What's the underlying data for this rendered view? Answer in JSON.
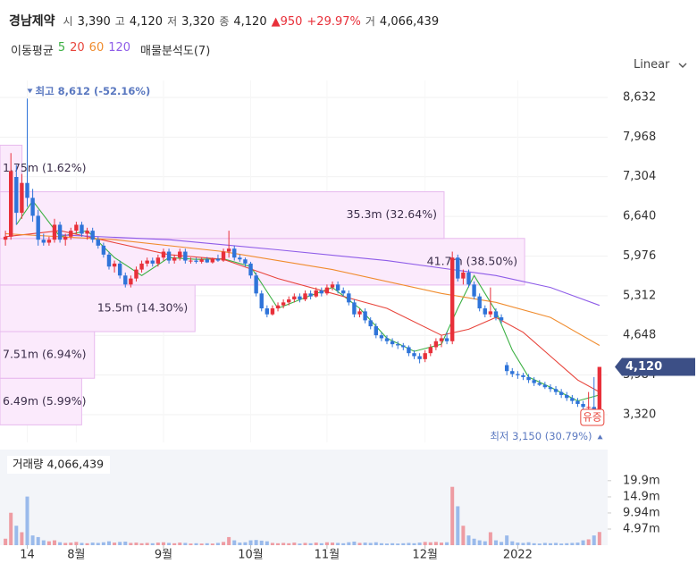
{
  "header": {
    "name": "경남제약",
    "fields": [
      {
        "label": "시",
        "value": "3,390"
      },
      {
        "label": "고",
        "value": "4,120"
      },
      {
        "label": "저",
        "value": "3,320"
      },
      {
        "label": "종",
        "value": "4,120"
      }
    ],
    "change": "▲950",
    "change_pct": "+29.97%",
    "volume_label": "거",
    "volume": "4,066,439"
  },
  "chart_data": [
    {
      "type": "candlestick",
      "legend_title": "이동평균",
      "scale": "Linear",
      "up_color": "#e8303a",
      "down_color": "#2f74d9",
      "xlim": [
        -1,
        110.5
      ],
      "ylim": [
        2856,
        8916
      ],
      "yticks": [
        {
          "value": 3320,
          "label": "3,320"
        },
        {
          "value": 3984,
          "label": "3,984"
        },
        {
          "value": 4648,
          "label": "4,648"
        },
        {
          "value": 5312,
          "label": "5,312"
        },
        {
          "value": 5976,
          "label": "5,976"
        },
        {
          "value": 6640,
          "label": "6,640"
        },
        {
          "value": 7304,
          "label": "7,304"
        },
        {
          "value": 7968,
          "label": "7,968"
        },
        {
          "value": 8632,
          "label": "8,632"
        }
      ],
      "xticks": [
        {
          "value": 4,
          "label": "14"
        },
        {
          "value": 13,
          "label": "8월"
        },
        {
          "value": 29,
          "label": "9월"
        },
        {
          "value": 45,
          "label": "10월"
        },
        {
          "value": 59,
          "label": "11월"
        },
        {
          "value": 77,
          "label": "12월"
        },
        {
          "value": 94,
          "label": "2022"
        }
      ],
      "last_price": {
        "value": 4120,
        "label": "4,120"
      },
      "candles": [
        [
          6250,
          6400,
          6150,
          6300
        ],
        [
          6300,
          7700,
          6250,
          7400
        ],
        [
          7300,
          7500,
          6500,
          6700
        ],
        [
          6700,
          7350,
          6600,
          7200
        ],
        [
          7200,
          8612,
          6800,
          6950
        ],
        [
          6950,
          7100,
          6550,
          6650
        ],
        [
          6650,
          6750,
          6150,
          6250
        ],
        [
          6250,
          6350,
          6150,
          6200
        ],
        [
          6200,
          6300,
          6150,
          6250
        ],
        [
          6250,
          6600,
          6200,
          6500
        ],
        [
          6500,
          6550,
          6200,
          6250
        ],
        [
          6250,
          6350,
          6150,
          6300
        ],
        [
          6300,
          6450,
          6250,
          6400
        ],
        [
          6400,
          6550,
          6350,
          6500
        ],
        [
          6500,
          6550,
          6300,
          6350
        ],
        [
          6350,
          6450,
          6250,
          6400
        ],
        [
          6400,
          6450,
          6200,
          6250
        ],
        [
          6250,
          6300,
          6100,
          6150
        ],
        [
          6150,
          6200,
          5950,
          6000
        ],
        [
          6000,
          6050,
          5750,
          5800
        ],
        [
          5800,
          5900,
          5700,
          5850
        ],
        [
          5850,
          5900,
          5600,
          5650
        ],
        [
          5650,
          5700,
          5450,
          5500
        ],
        [
          5500,
          5650,
          5450,
          5600
        ],
        [
          5600,
          5800,
          5550,
          5750
        ],
        [
          5750,
          5900,
          5700,
          5850
        ],
        [
          5850,
          5950,
          5800,
          5900
        ],
        [
          5900,
          5950,
          5800,
          5850
        ],
        [
          5850,
          6000,
          5800,
          5950
        ],
        [
          5950,
          6100,
          5900,
          6050
        ],
        [
          6050,
          6100,
          5850,
          5900
        ],
        [
          5900,
          6000,
          5850,
          5950
        ],
        [
          5950,
          6100,
          5900,
          6050
        ],
        [
          6050,
          6100,
          5850,
          5900
        ],
        [
          5900,
          5950,
          5850,
          5900
        ],
        [
          5900,
          5950,
          5850,
          5880
        ],
        [
          5880,
          5950,
          5850,
          5920
        ],
        [
          5920,
          5960,
          5860,
          5870
        ],
        [
          5870,
          5950,
          5850,
          5930
        ],
        [
          5930,
          6000,
          5880,
          5900
        ],
        [
          5900,
          6100,
          5880,
          6050
        ],
        [
          6050,
          6400,
          5950,
          6100
        ],
        [
          6100,
          6150,
          5900,
          5950
        ],
        [
          5950,
          6000,
          5880,
          5920
        ],
        [
          5920,
          5950,
          5800,
          5850
        ],
        [
          5850,
          5880,
          5600,
          5650
        ],
        [
          5650,
          5700,
          5300,
          5350
        ],
        [
          5350,
          5400,
          5050,
          5100
        ],
        [
          5100,
          5150,
          4950,
          5000
        ],
        [
          5000,
          5150,
          4980,
          5100
        ],
        [
          5100,
          5200,
          5050,
          5150
        ],
        [
          5150,
          5250,
          5100,
          5200
        ],
        [
          5200,
          5300,
          5150,
          5250
        ],
        [
          5250,
          5350,
          5200,
          5300
        ],
        [
          5300,
          5350,
          5200,
          5250
        ],
        [
          5250,
          5400,
          5220,
          5350
        ],
        [
          5350,
          5400,
          5250,
          5300
        ],
        [
          5300,
          5450,
          5280,
          5400
        ],
        [
          5400,
          5450,
          5300,
          5350
        ],
        [
          5350,
          5500,
          5320,
          5450
        ],
        [
          5450,
          5550,
          5400,
          5500
        ],
        [
          5500,
          5550,
          5350,
          5400
        ],
        [
          5400,
          5450,
          5300,
          5350
        ],
        [
          5350,
          5400,
          5150,
          5200
        ],
        [
          5200,
          5250,
          4950,
          5000
        ],
        [
          5000,
          5100,
          4950,
          5050
        ],
        [
          5050,
          5100,
          4850,
          4900
        ],
        [
          4900,
          4950,
          4750,
          4800
        ],
        [
          4800,
          4850,
          4600,
          4650
        ],
        [
          4650,
          4700,
          4550,
          4600
        ],
        [
          4600,
          4650,
          4500,
          4550
        ],
        [
          4550,
          4600,
          4450,
          4500
        ],
        [
          4500,
          4550,
          4420,
          4480
        ],
        [
          4480,
          4520,
          4400,
          4450
        ],
        [
          4450,
          4480,
          4300,
          4350
        ],
        [
          4350,
          4400,
          4250,
          4300
        ],
        [
          4300,
          4350,
          4180,
          4250
        ],
        [
          4250,
          4400,
          4200,
          4350
        ],
        [
          4350,
          4500,
          4300,
          4450
        ],
        [
          4450,
          4600,
          4400,
          4550
        ],
        [
          4550,
          4650,
          4450,
          4600
        ],
        [
          4600,
          4700,
          4500,
          4550
        ],
        [
          4550,
          6050,
          4500,
          5950
        ],
        [
          5950,
          6000,
          5550,
          5600
        ],
        [
          5600,
          5750,
          5500,
          5700
        ],
        [
          5700,
          5750,
          5450,
          5500
        ],
        [
          5500,
          5550,
          5250,
          5300
        ],
        [
          5300,
          5350,
          5050,
          5100
        ],
        [
          5100,
          5150,
          4950,
          5000
        ],
        [
          5000,
          5450,
          4950,
          5050
        ],
        [
          5050,
          5100,
          4900,
          4950
        ],
        [
          4950,
          5000,
          4850,
          4900
        ],
        [
          4150,
          4200,
          3980,
          4050
        ],
        [
          4050,
          4100,
          3950,
          4000
        ],
        [
          4000,
          4050,
          3920,
          3980
        ],
        [
          3980,
          4020,
          3900,
          3950
        ],
        [
          3950,
          4000,
          3850,
          3900
        ],
        [
          3900,
          3950,
          3800,
          3850
        ],
        [
          3850,
          3900,
          3800,
          3820
        ],
        [
          3820,
          3870,
          3750,
          3780
        ],
        [
          3780,
          3830,
          3700,
          3750
        ],
        [
          3750,
          3800,
          3650,
          3700
        ],
        [
          3700,
          3750,
          3600,
          3650
        ],
        [
          3650,
          3700,
          3550,
          3600
        ],
        [
          3600,
          3650,
          3500,
          3550
        ],
        [
          3550,
          3600,
          3450,
          3500
        ],
        [
          3500,
          3550,
          3150,
          3450
        ],
        [
          3450,
          3700,
          3400,
          3450
        ],
        [
          3450,
          3950,
          3350,
          3400
        ],
        [
          3390,
          4120,
          3320,
          4120
        ]
      ],
      "series": [
        {
          "name": "5",
          "color": "#3cb043",
          "x": [
            2,
            5,
            10,
            15,
            20,
            25,
            30,
            35,
            40,
            45,
            50,
            55,
            60,
            65,
            70,
            75,
            80,
            83,
            86,
            90,
            93,
            96,
            100,
            105,
            109
          ],
          "values": [
            6500,
            6900,
            6300,
            6400,
            5950,
            5650,
            5950,
            5920,
            5930,
            5800,
            5100,
            5280,
            5450,
            5100,
            4600,
            4380,
            4500,
            5100,
            5650,
            5050,
            4400,
            3950,
            3780,
            3550,
            3650
          ]
        },
        {
          "name": "20",
          "color": "#e8453c",
          "x": [
            0,
            10,
            20,
            30,
            40,
            50,
            60,
            70,
            80,
            85,
            90,
            95,
            100,
            105,
            109
          ],
          "values": [
            6300,
            6400,
            6200,
            6000,
            5920,
            5600,
            5350,
            5100,
            4650,
            4750,
            4950,
            4700,
            4300,
            3900,
            3700
          ]
        },
        {
          "name": "60",
          "color": "#f08c2e",
          "x": [
            0,
            20,
            40,
            60,
            80,
            90,
            100,
            109
          ],
          "values": [
            6350,
            6250,
            6050,
            5750,
            5350,
            5200,
            4950,
            4480
          ]
        },
        {
          "name": "120",
          "color": "#8e5ce8",
          "x": [
            10,
            30,
            50,
            70,
            90,
            100,
            109
          ],
          "values": [
            6330,
            6250,
            6080,
            5900,
            5650,
            5450,
            5150
          ]
        }
      ],
      "profile": {
        "name": "매물분석도(7)",
        "color": "#fbeafc",
        "edge_color": "#e7b9ee",
        "bins": [
          3150,
          3930,
          4711,
          5491,
          6271,
          7052,
          7832
        ],
        "values": [
          6490000,
          7510000,
          15500000,
          41700000,
          35300000,
          1750000
        ],
        "value_labels": [
          "6.49m (5.99%)",
          "7.51m (6.94%)",
          "15.5m (14.30%)",
          "41.7m (38.50%)",
          "35.3m (32.64%)",
          "1.75m (1.62%)"
        ],
        "xlim": [
          0,
          48300000
        ]
      },
      "annotations": [
        {
          "text": "최고 8,612 (-52.16%)",
          "x": 4,
          "value": 8612
        },
        {
          "text": "최저 3,150 (30.79%)",
          "x": 106,
          "value": 3150
        },
        {
          "text": "유증",
          "x": 109
        }
      ]
    },
    {
      "type": "bar",
      "title": "거래량 4,066,439",
      "ylim": [
        0,
        29500000
      ],
      "yticks": [
        {
          "value": 4970000,
          "label": "4.97m"
        },
        {
          "value": 9940000,
          "label": "9.94m"
        },
        {
          "value": 14900000,
          "label": "14.9m"
        },
        {
          "value": 19900000,
          "label": "19.9m"
        }
      ],
      "values": [
        2000000,
        10000000,
        6000000,
        4000000,
        15000000,
        3000000,
        2500000,
        1500000,
        1200000,
        1500000,
        900000,
        700000,
        800000,
        1000000,
        700000,
        600000,
        800000,
        700000,
        900000,
        1200000,
        800000,
        1000000,
        1100000,
        700000,
        800000,
        600000,
        700000,
        600000,
        800000,
        900000,
        700000,
        600000,
        800000,
        700000,
        500000,
        600000,
        500000,
        600000,
        500000,
        700000,
        1000000,
        2500000,
        1500000,
        800000,
        900000,
        1500000,
        1600000,
        1400000,
        1200000,
        700000,
        600000,
        700000,
        600000,
        800000,
        500000,
        700000,
        600000,
        800000,
        600000,
        900000,
        800000,
        700000,
        600000,
        900000,
        1100000,
        700000,
        800000,
        700000,
        900000,
        600000,
        500000,
        600000,
        500000,
        600000,
        700000,
        600000,
        800000,
        1000000,
        900000,
        1000000,
        800000,
        900000,
        18000000,
        12000000,
        6000000,
        3000000,
        2000000,
        1500000,
        1200000,
        4000000,
        1500000,
        1000000,
        3000000,
        1200000,
        800000,
        700000,
        900000,
        600000,
        500000,
        700000,
        600000,
        700000,
        500000,
        600000,
        700000,
        800000,
        1500000,
        1800000,
        3000000,
        4066439
      ]
    }
  ]
}
